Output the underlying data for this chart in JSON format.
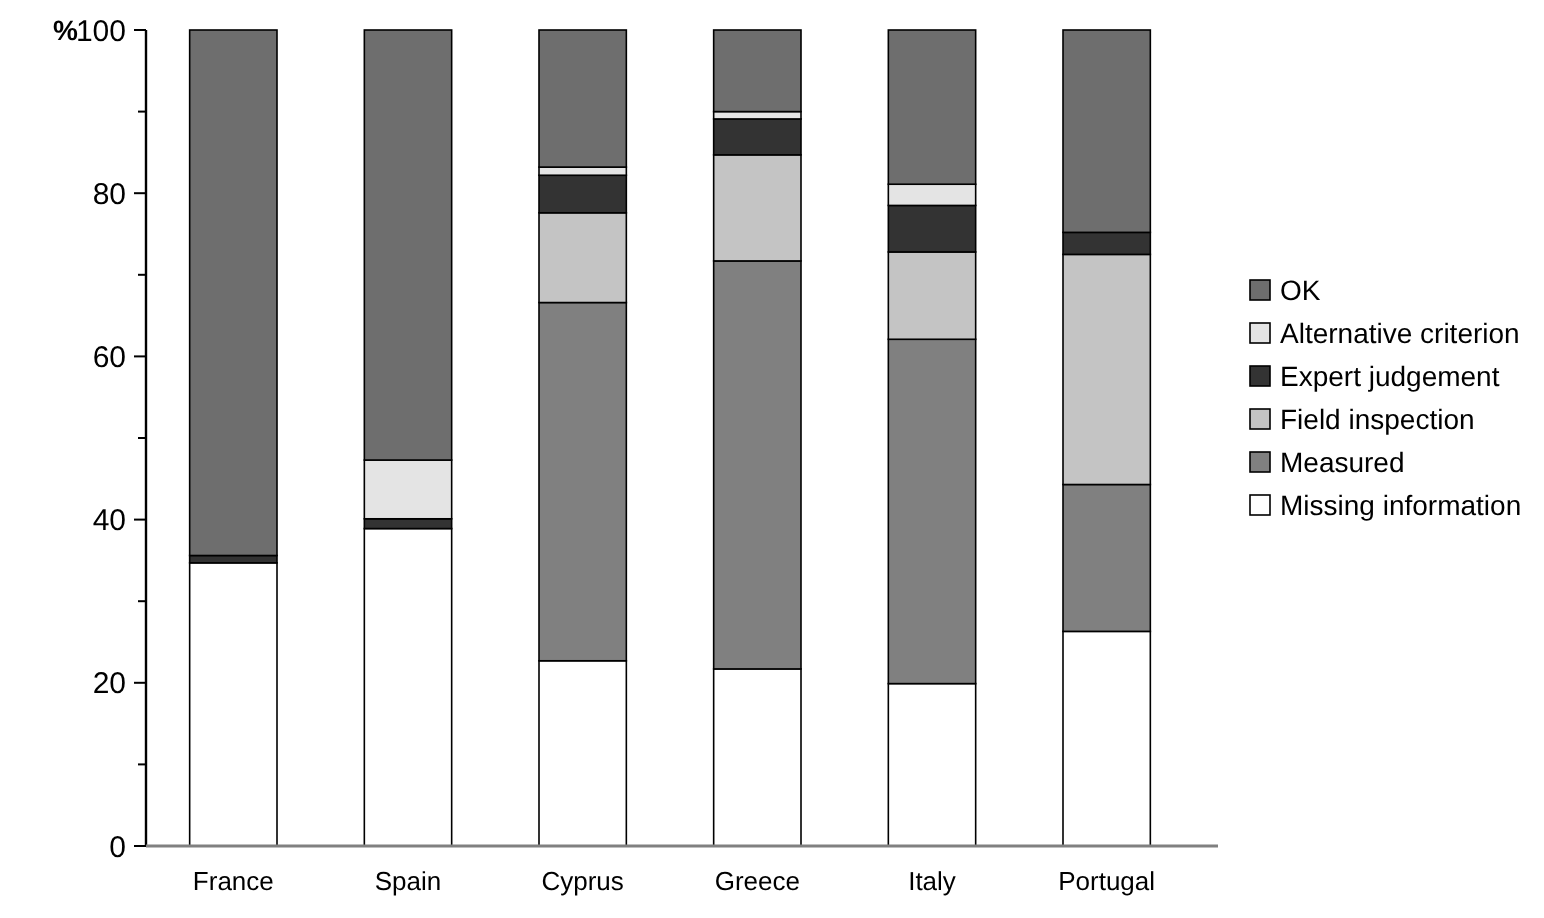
{
  "chart_data": {
    "type": "bar",
    "stacked": true,
    "ylabel": "%",
    "categories": [
      "France",
      "Spain",
      "Cyprus",
      "Greece",
      "Italy",
      "Portugal"
    ],
    "series": [
      {
        "name": "Missing information",
        "color": "#ffffff",
        "values": [
          34.7,
          38.9,
          22.7,
          21.7,
          19.9,
          26.3
        ]
      },
      {
        "name": "Measured",
        "color": "#808080",
        "values": [
          0,
          0,
          43.9,
          50.0,
          42.2,
          18.0
        ]
      },
      {
        "name": "Field inspection",
        "color": "#c4c4c4",
        "values": [
          0,
          0,
          11.0,
          13.0,
          10.7,
          28.2
        ]
      },
      {
        "name": "Expert judgement",
        "color": "#333333",
        "values": [
          0.9,
          1.2,
          4.6,
          4.4,
          5.7,
          2.7
        ]
      },
      {
        "name": "Alternative criterion",
        "color": "#e4e4e4",
        "values": [
          0,
          7.2,
          1.0,
          0.9,
          2.6,
          0
        ]
      },
      {
        "name": "OK",
        "color": "#6e6e6e",
        "values": [
          64.4,
          52.7,
          16.8,
          10.0,
          18.9,
          24.8
        ]
      }
    ],
    "ylim": [
      0,
      100
    ],
    "yticks": [
      0,
      {
        "value": 10,
        "label": null
      },
      20,
      {
        "value": 30,
        "label": null
      },
      40,
      {
        "value": 50,
        "label": null
      },
      60,
      {
        "value": 70,
        "label": null
      },
      80,
      {
        "value": 90,
        "label": null
      },
      100
    ],
    "legend": "right"
  }
}
